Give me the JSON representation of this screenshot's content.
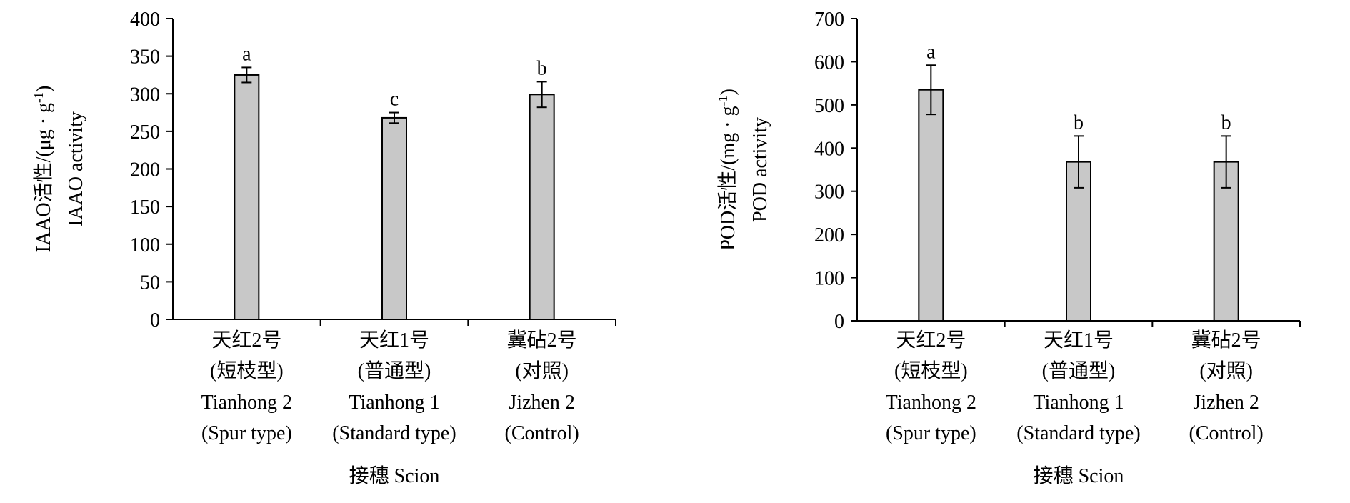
{
  "chart_data": [
    {
      "type": "bar",
      "title": "",
      "ylabel_cn": "IAAO活性/(μg · g",
      "ylabel_sup": "-1",
      "ylabel_close": ")",
      "ylabel_en": "IAAO activity",
      "xlabel": "接穗 Scion",
      "ylim": [
        0,
        400
      ],
      "yticks": [
        0,
        50,
        100,
        150,
        200,
        250,
        300,
        350,
        400
      ],
      "categories": [
        [
          "天红2号",
          "(短枝型)",
          "Tianhong 2",
          "(Spur type)"
        ],
        [
          "天红1号",
          "(普通型)",
          "Tianhong 1",
          "(Standard type)"
        ],
        [
          "冀砧2号",
          "(对照)",
          "Jizhen 2",
          "(Control)"
        ]
      ],
      "values": [
        325,
        268,
        299
      ],
      "errors": [
        10,
        7,
        17
      ],
      "significance": [
        "a",
        "c",
        "b"
      ],
      "bar_color": "#c8c8c8",
      "grid": false
    },
    {
      "type": "bar",
      "title": "",
      "ylabel_cn": "POD活性/(mg · g",
      "ylabel_sup": "-1",
      "ylabel_close": ")",
      "ylabel_en": "POD activity",
      "xlabel": "接穗 Scion",
      "ylim": [
        0,
        700
      ],
      "yticks": [
        0,
        100,
        200,
        300,
        400,
        500,
        600,
        700
      ],
      "categories": [
        [
          "天红2号",
          "(短枝型)",
          "Tianhong 2",
          "(Spur type)"
        ],
        [
          "天红1号",
          "(普通型)",
          "Tianhong 1",
          "(Standard type)"
        ],
        [
          "冀砧2号",
          "(对照)",
          "Jizhen 2",
          "(Control)"
        ]
      ],
      "values": [
        535,
        368,
        368
      ],
      "errors": [
        57,
        60,
        60
      ],
      "significance": [
        "a",
        "b",
        "b"
      ],
      "bar_color": "#c8c8c8",
      "grid": false
    }
  ]
}
